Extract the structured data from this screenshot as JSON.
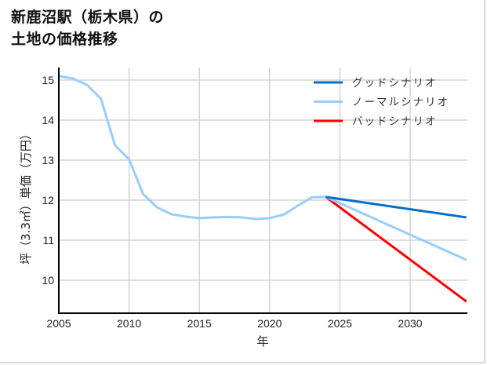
{
  "title": {
    "line1": "新鹿沼駅（栃木県）の",
    "line2": "土地の価格推移"
  },
  "chart_data": {
    "type": "line",
    "title": "新鹿沼駅（栃木県）の土地の価格推移",
    "xlabel": "年",
    "ylabel": "坪（3.3㎡）単価（万円）",
    "xlim": [
      2005,
      2034
    ],
    "ylim": [
      9.2,
      15.3
    ],
    "xticks": [
      2005,
      2010,
      2015,
      2020,
      2025,
      2030
    ],
    "yticks": [
      10,
      11,
      12,
      13,
      14,
      15
    ],
    "grid": true,
    "legend_position": "upper right",
    "historical": {
      "x": [
        2005,
        2006,
        2007,
        2008,
        2009,
        2010,
        2011,
        2012,
        2013,
        2014,
        2015,
        2016,
        2017,
        2018,
        2019,
        2020,
        2021,
        2022,
        2023,
        2024
      ],
      "values": [
        15.1,
        15.04,
        14.88,
        14.53,
        13.37,
        13.02,
        12.15,
        11.82,
        11.65,
        11.59,
        11.55,
        11.57,
        11.58,
        11.57,
        11.53,
        11.55,
        11.64,
        11.86,
        12.07,
        12.08
      ]
    },
    "series": [
      {
        "name": "グッドシナリオ",
        "color": "#0070c9",
        "x": [
          2024,
          2034
        ],
        "values": [
          12.08,
          11.57
        ]
      },
      {
        "name": "ノーマルシナリオ",
        "color": "#99ccff",
        "x": [
          2024,
          2034
        ],
        "values": [
          12.08,
          10.51
        ]
      },
      {
        "name": "バッドシナリオ",
        "color": "#ff0000",
        "x": [
          2024,
          2034
        ],
        "values": [
          12.08,
          9.47
        ]
      }
    ]
  }
}
